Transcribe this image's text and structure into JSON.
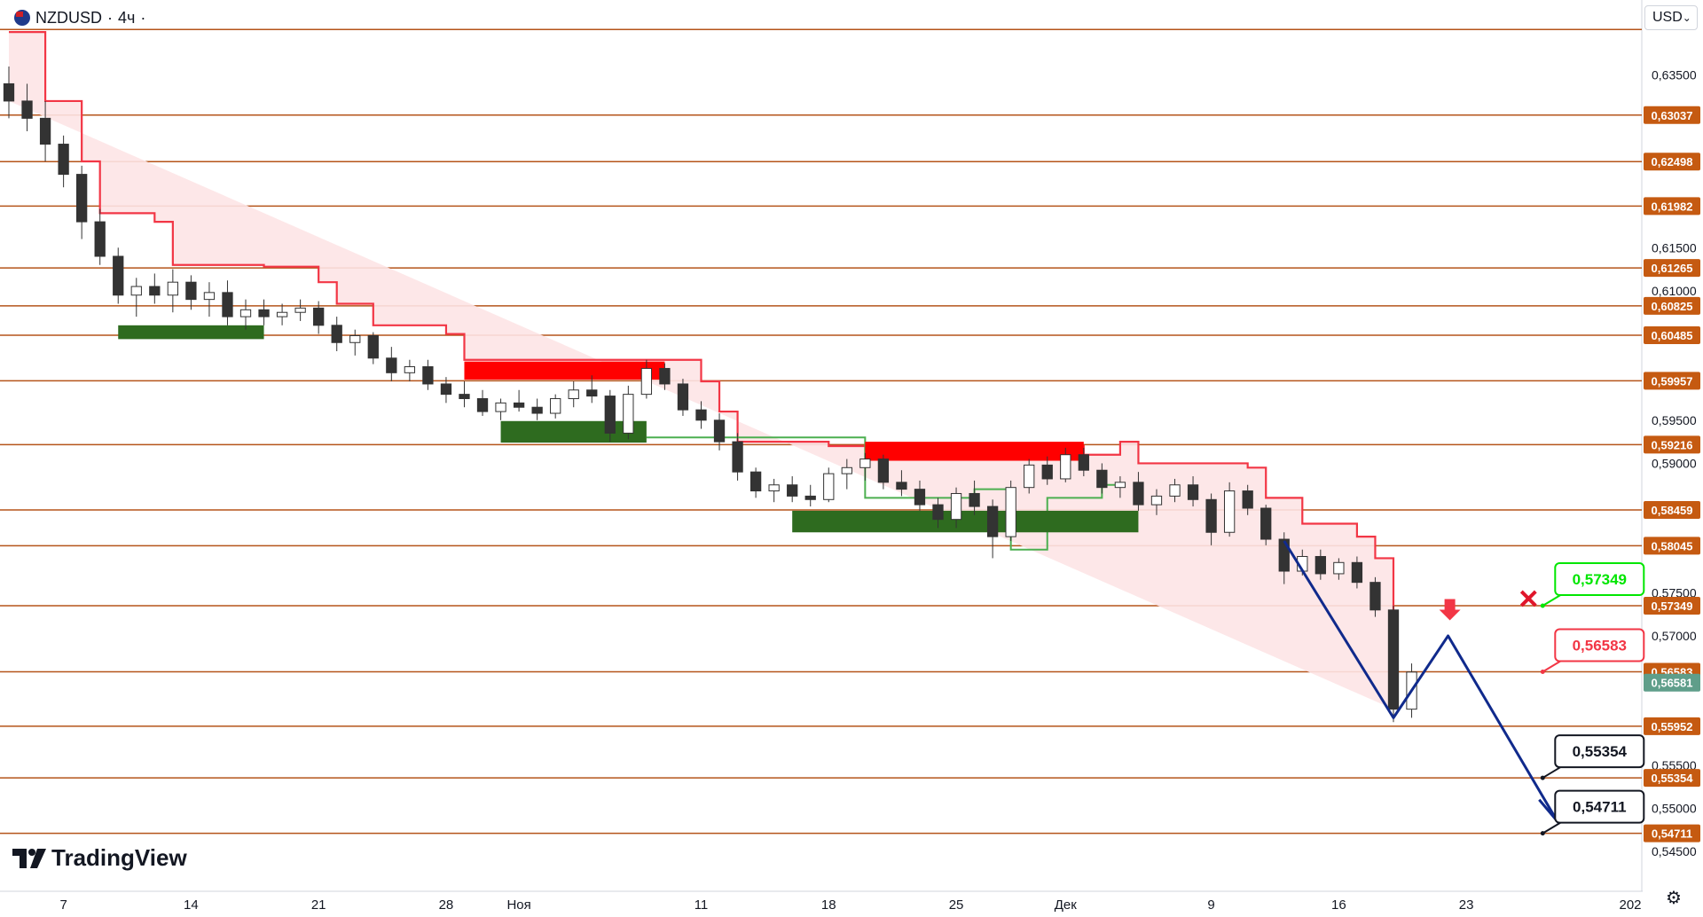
{
  "header": {
    "symbol": "NZDUSD",
    "interval": "4ч",
    "currency": "USD",
    "currency_chevron": "⌄"
  },
  "logo": {
    "text": "TradingView"
  },
  "icons": {
    "flag": "nz-flag-icon",
    "settings": "settings-icon",
    "cross": "cross-icon",
    "arrow": "arrow-down-icon"
  },
  "colors": {
    "level_line": "#b5541a",
    "level_label_bg": "#c55a11",
    "supertrend": "#f23645",
    "supertrend_fill": "#fde4e6",
    "green_zone": "#2e6b1f",
    "red_zone": "#ff0000",
    "forecast": "#102a8c",
    "current_price_bg": "#5f9e8a",
    "up_candle": "#089981",
    "down_candle": "#f23645",
    "candle_body": "#333333"
  },
  "chart_data": {
    "type": "candlestick",
    "title": "",
    "ylim": [
      0.5445,
      0.6396
    ],
    "y_ticks": [
      "0,63500",
      "0,61500",
      "0,61000",
      "0,59500",
      "0,59000",
      "0,57500",
      "0,57000",
      "0,55500",
      "0,55000",
      "0,54500"
    ],
    "x_range_start": "2024-10-04",
    "x_range_end": "2025-01-01",
    "x_ticks": [
      {
        "date": "2024-10-07",
        "label": "7"
      },
      {
        "date": "2024-10-14",
        "label": "14"
      },
      {
        "date": "2024-10-21",
        "label": "21"
      },
      {
        "date": "2024-10-28",
        "label": "28"
      },
      {
        "date": "2024-11-01",
        "label": "Ноя"
      },
      {
        "date": "2024-11-11",
        "label": "11"
      },
      {
        "date": "2024-11-18",
        "label": "18"
      },
      {
        "date": "2024-11-25",
        "label": "25"
      },
      {
        "date": "2024-12-01",
        "label": "Дек"
      },
      {
        "date": "2024-12-09",
        "label": "9"
      },
      {
        "date": "2024-12-16",
        "label": "16"
      },
      {
        "date": "2024-12-23",
        "label": "23"
      },
      {
        "date": "2025-01-01",
        "label": "202"
      }
    ],
    "levels": [
      {
        "value": 0.6403,
        "label": ""
      },
      {
        "value": 0.63037,
        "label": "0,63037"
      },
      {
        "value": 0.62498,
        "label": "0,62498"
      },
      {
        "value": 0.61982,
        "label": "0,61982"
      },
      {
        "value": 0.61265,
        "label": "0,61265"
      },
      {
        "value": 0.60825,
        "label": "0,60825"
      },
      {
        "value": 0.60485,
        "label": "0,60485"
      },
      {
        "value": 0.59957,
        "label": "0,59957"
      },
      {
        "value": 0.59216,
        "label": "0,59216"
      },
      {
        "value": 0.58459,
        "label": "0,58459"
      },
      {
        "value": 0.58045,
        "label": "0,58045"
      },
      {
        "value": 0.57349,
        "label": "0,57349"
      },
      {
        "value": 0.56583,
        "label": "0,56583"
      },
      {
        "value": 0.55952,
        "label": "0,55952"
      },
      {
        "value": 0.55354,
        "label": "0,55354"
      },
      {
        "value": 0.54711,
        "label": "0,54711"
      }
    ],
    "current_price": {
      "value": 0.56581,
      "label": "0,56581"
    },
    "callouts": [
      {
        "label": "0,57349",
        "value": 0.57349,
        "date": "2024-12-27",
        "style": "green"
      },
      {
        "label": "0,56583",
        "value": 0.56583,
        "date": "2024-12-27",
        "style": "red"
      },
      {
        "label": "0,55354",
        "value": 0.55354,
        "date": "2024-12-27",
        "style": "dark"
      },
      {
        "label": "0,54711",
        "value": 0.54711,
        "date": "2024-12-27",
        "style": "dark"
      }
    ],
    "forecast_path": [
      {
        "date": "2024-12-13",
        "value": 0.581
      },
      {
        "date": "2024-12-19",
        "value": 0.5605
      },
      {
        "date": "2024-12-22",
        "value": 0.57
      },
      {
        "date": "2024-12-28",
        "value": 0.5485
      },
      {
        "date": "2024-12-27",
        "value": 0.548
      }
    ],
    "arrowhead": [
      {
        "date": "2024-12-27",
        "value": 0.551
      },
      {
        "date": "2024-12-28",
        "value": 0.5485
      },
      {
        "date": "2024-12-28",
        "value": 0.552
      }
    ],
    "cross_marker": {
      "date": "2024-12-27",
      "value": 0.5735
    },
    "down_arrow_marker": {
      "date": "2024-12-22",
      "value": 0.572
    },
    "zones": [
      {
        "type": "support",
        "start": "2024-10-10",
        "end": "2024-10-18",
        "top": 0.606,
        "bottom": 0.6044
      },
      {
        "type": "resistance",
        "start": "2024-10-29",
        "end": "2024-11-09",
        "top": 0.6018,
        "bottom": 0.5997
      },
      {
        "type": "support",
        "start": "2024-10-31",
        "end": "2024-11-08",
        "top": 0.5949,
        "bottom": 0.5924
      },
      {
        "type": "resistance",
        "start": "2024-11-20",
        "end": "2024-12-02",
        "top": 0.5925,
        "bottom": 0.5903
      },
      {
        "type": "support",
        "start": "2024-11-16",
        "end": "2024-12-05",
        "top": 0.5845,
        "bottom": 0.582
      }
    ],
    "supertrend_upper": [
      {
        "date": "2024-10-04",
        "value": 0.64
      },
      {
        "date": "2024-10-06",
        "value": 0.632
      },
      {
        "date": "2024-10-08",
        "value": 0.625
      },
      {
        "date": "2024-10-09",
        "value": 0.619
      },
      {
        "date": "2024-10-12",
        "value": 0.618
      },
      {
        "date": "2024-10-13",
        "value": 0.613
      },
      {
        "date": "2024-10-18",
        "value": 0.6128
      },
      {
        "date": "2024-10-21",
        "value": 0.611
      },
      {
        "date": "2024-10-22",
        "value": 0.6085
      },
      {
        "date": "2024-10-24",
        "value": 0.606
      },
      {
        "date": "2024-10-28",
        "value": 0.605
      },
      {
        "date": "2024-10-29",
        "value": 0.602
      },
      {
        "date": "2024-11-11",
        "value": 0.5995
      },
      {
        "date": "2024-11-12",
        "value": 0.596
      },
      {
        "date": "2024-11-13",
        "value": 0.5925
      },
      {
        "date": "2024-11-18",
        "value": 0.592
      },
      {
        "date": "2024-12-02",
        "value": 0.591
      },
      {
        "date": "2024-12-04",
        "value": 0.5925
      },
      {
        "date": "2024-12-05",
        "value": 0.59
      },
      {
        "date": "2024-12-11",
        "value": 0.5895
      },
      {
        "date": "2024-12-12",
        "value": 0.586
      },
      {
        "date": "2024-12-14",
        "value": 0.583
      },
      {
        "date": "2024-12-17",
        "value": 0.5815
      },
      {
        "date": "2024-12-18",
        "value": 0.579
      },
      {
        "date": "2024-12-19",
        "value": 0.57
      }
    ],
    "supertrend_lower": [
      {
        "date": "2024-11-08",
        "value": 0.593
      },
      {
        "date": "2024-11-11",
        "value": 0.593
      },
      {
        "date": "2024-11-20",
        "value": 0.586
      },
      {
        "date": "2024-11-26",
        "value": 0.587
      },
      {
        "date": "2024-11-28",
        "value": 0.58
      },
      {
        "date": "2024-11-30",
        "value": 0.586
      },
      {
        "date": "2024-12-03",
        "value": 0.5875
      },
      {
        "date": "2024-12-04",
        "value": 0.5875
      }
    ],
    "candles": [
      {
        "date": "2024-10-04",
        "open": 0.634,
        "high": 0.636,
        "low": 0.63,
        "close": 0.632
      },
      {
        "date": "2024-10-05",
        "open": 0.632,
        "high": 0.634,
        "low": 0.6285,
        "close": 0.63
      },
      {
        "date": "2024-10-06",
        "open": 0.63,
        "high": 0.632,
        "low": 0.625,
        "close": 0.627
      },
      {
        "date": "2024-10-07",
        "open": 0.627,
        "high": 0.628,
        "low": 0.622,
        "close": 0.6235
      },
      {
        "date": "2024-10-08",
        "open": 0.6235,
        "high": 0.6245,
        "low": 0.616,
        "close": 0.618
      },
      {
        "date": "2024-10-09",
        "open": 0.618,
        "high": 0.6195,
        "low": 0.613,
        "close": 0.614
      },
      {
        "date": "2024-10-10",
        "open": 0.614,
        "high": 0.615,
        "low": 0.6085,
        "close": 0.6095
      },
      {
        "date": "2024-10-11",
        "open": 0.6095,
        "high": 0.6115,
        "low": 0.607,
        "close": 0.6105
      },
      {
        "date": "2024-10-12",
        "open": 0.6105,
        "high": 0.612,
        "low": 0.6085,
        "close": 0.6095
      },
      {
        "date": "2024-10-13",
        "open": 0.6095,
        "high": 0.6125,
        "low": 0.6075,
        "close": 0.611
      },
      {
        "date": "2024-10-14",
        "open": 0.611,
        "high": 0.6118,
        "low": 0.6078,
        "close": 0.609
      },
      {
        "date": "2024-10-15",
        "open": 0.609,
        "high": 0.611,
        "low": 0.607,
        "close": 0.6098
      },
      {
        "date": "2024-10-16",
        "open": 0.6098,
        "high": 0.6112,
        "low": 0.606,
        "close": 0.607
      },
      {
        "date": "2024-10-17",
        "open": 0.607,
        "high": 0.609,
        "low": 0.6055,
        "close": 0.6078
      },
      {
        "date": "2024-10-18",
        "open": 0.6078,
        "high": 0.609,
        "low": 0.606,
        "close": 0.607
      },
      {
        "date": "2024-10-19",
        "open": 0.607,
        "high": 0.6085,
        "low": 0.606,
        "close": 0.6075
      },
      {
        "date": "2024-10-20",
        "open": 0.6075,
        "high": 0.609,
        "low": 0.6065,
        "close": 0.608
      },
      {
        "date": "2024-10-21",
        "open": 0.608,
        "high": 0.6088,
        "low": 0.605,
        "close": 0.606
      },
      {
        "date": "2024-10-22",
        "open": 0.606,
        "high": 0.607,
        "low": 0.603,
        "close": 0.604
      },
      {
        "date": "2024-10-23",
        "open": 0.604,
        "high": 0.6055,
        "low": 0.6025,
        "close": 0.6048
      },
      {
        "date": "2024-10-24",
        "open": 0.6048,
        "high": 0.6052,
        "low": 0.6015,
        "close": 0.6022
      },
      {
        "date": "2024-10-25",
        "open": 0.6022,
        "high": 0.6035,
        "low": 0.5995,
        "close": 0.6005
      },
      {
        "date": "2024-10-26",
        "open": 0.6005,
        "high": 0.602,
        "low": 0.5995,
        "close": 0.6012
      },
      {
        "date": "2024-10-27",
        "open": 0.6012,
        "high": 0.602,
        "low": 0.5985,
        "close": 0.5992
      },
      {
        "date": "2024-10-28",
        "open": 0.5992,
        "high": 0.6,
        "low": 0.597,
        "close": 0.598
      },
      {
        "date": "2024-10-29",
        "open": 0.598,
        "high": 0.5995,
        "low": 0.5965,
        "close": 0.5975
      },
      {
        "date": "2024-10-30",
        "open": 0.5975,
        "high": 0.5985,
        "low": 0.5955,
        "close": 0.596
      },
      {
        "date": "2024-10-31",
        "open": 0.596,
        "high": 0.5975,
        "low": 0.595,
        "close": 0.597
      },
      {
        "date": "2024-11-01",
        "open": 0.597,
        "high": 0.5985,
        "low": 0.596,
        "close": 0.5965
      },
      {
        "date": "2024-11-02",
        "open": 0.5965,
        "high": 0.5975,
        "low": 0.595,
        "close": 0.5958
      },
      {
        "date": "2024-11-03",
        "open": 0.5958,
        "high": 0.598,
        "low": 0.5952,
        "close": 0.5975
      },
      {
        "date": "2024-11-04",
        "open": 0.5975,
        "high": 0.5995,
        "low": 0.5965,
        "close": 0.5985
      },
      {
        "date": "2024-11-05",
        "open": 0.5985,
        "high": 0.6002,
        "low": 0.597,
        "close": 0.5978
      },
      {
        "date": "2024-11-06",
        "open": 0.5978,
        "high": 0.5985,
        "low": 0.5925,
        "close": 0.5935
      },
      {
        "date": "2024-11-07",
        "open": 0.5935,
        "high": 0.599,
        "low": 0.5928,
        "close": 0.598
      },
      {
        "date": "2024-11-08",
        "open": 0.598,
        "high": 0.602,
        "low": 0.5975,
        "close": 0.601
      },
      {
        "date": "2024-11-09",
        "open": 0.601,
        "high": 0.6016,
        "low": 0.5985,
        "close": 0.5992
      },
      {
        "date": "2024-11-10",
        "open": 0.5992,
        "high": 0.5998,
        "low": 0.5955,
        "close": 0.5962
      },
      {
        "date": "2024-11-11",
        "open": 0.5962,
        "high": 0.5972,
        "low": 0.594,
        "close": 0.595
      },
      {
        "date": "2024-11-12",
        "open": 0.595,
        "high": 0.5958,
        "low": 0.5915,
        "close": 0.5925
      },
      {
        "date": "2024-11-13",
        "open": 0.5925,
        "high": 0.5935,
        "low": 0.588,
        "close": 0.589
      },
      {
        "date": "2024-11-14",
        "open": 0.589,
        "high": 0.5895,
        "low": 0.586,
        "close": 0.5868
      },
      {
        "date": "2024-11-15",
        "open": 0.5868,
        "high": 0.5882,
        "low": 0.5855,
        "close": 0.5875
      },
      {
        "date": "2024-11-16",
        "open": 0.5875,
        "high": 0.5885,
        "low": 0.5855,
        "close": 0.5862
      },
      {
        "date": "2024-11-17",
        "open": 0.5862,
        "high": 0.5875,
        "low": 0.585,
        "close": 0.5858
      },
      {
        "date": "2024-11-18",
        "open": 0.5858,
        "high": 0.5895,
        "low": 0.5855,
        "close": 0.5888
      },
      {
        "date": "2024-11-19",
        "open": 0.5888,
        "high": 0.5905,
        "low": 0.587,
        "close": 0.5895
      },
      {
        "date": "2024-11-20",
        "open": 0.5895,
        "high": 0.5912,
        "low": 0.588,
        "close": 0.5905
      },
      {
        "date": "2024-11-21",
        "open": 0.5905,
        "high": 0.591,
        "low": 0.587,
        "close": 0.5878
      },
      {
        "date": "2024-11-22",
        "open": 0.5878,
        "high": 0.5892,
        "low": 0.5862,
        "close": 0.587
      },
      {
        "date": "2024-11-23",
        "open": 0.587,
        "high": 0.588,
        "low": 0.5845,
        "close": 0.5852
      },
      {
        "date": "2024-11-24",
        "open": 0.5852,
        "high": 0.586,
        "low": 0.5825,
        "close": 0.5835
      },
      {
        "date": "2024-11-25",
        "open": 0.5835,
        "high": 0.5872,
        "low": 0.5825,
        "close": 0.5865
      },
      {
        "date": "2024-11-26",
        "open": 0.5865,
        "high": 0.588,
        "low": 0.584,
        "close": 0.585
      },
      {
        "date": "2024-11-27",
        "open": 0.585,
        "high": 0.5858,
        "low": 0.579,
        "close": 0.5815
      },
      {
        "date": "2024-11-28",
        "open": 0.5815,
        "high": 0.588,
        "low": 0.581,
        "close": 0.5872
      },
      {
        "date": "2024-11-29",
        "open": 0.5872,
        "high": 0.5905,
        "low": 0.5865,
        "close": 0.5898
      },
      {
        "date": "2024-11-30",
        "open": 0.5898,
        "high": 0.5908,
        "low": 0.5875,
        "close": 0.5882
      },
      {
        "date": "2024-12-01",
        "open": 0.5882,
        "high": 0.5918,
        "low": 0.5878,
        "close": 0.591
      },
      {
        "date": "2024-12-02",
        "open": 0.591,
        "high": 0.5918,
        "low": 0.5885,
        "close": 0.5892
      },
      {
        "date": "2024-12-03",
        "open": 0.5892,
        "high": 0.59,
        "low": 0.5865,
        "close": 0.5872
      },
      {
        "date": "2024-12-04",
        "open": 0.5872,
        "high": 0.5885,
        "low": 0.586,
        "close": 0.5878
      },
      {
        "date": "2024-12-05",
        "open": 0.5878,
        "high": 0.589,
        "low": 0.5845,
        "close": 0.5852
      },
      {
        "date": "2024-12-06",
        "open": 0.5852,
        "high": 0.587,
        "low": 0.584,
        "close": 0.5862
      },
      {
        "date": "2024-12-07",
        "open": 0.5862,
        "high": 0.5882,
        "low": 0.5855,
        "close": 0.5875
      },
      {
        "date": "2024-12-08",
        "open": 0.5875,
        "high": 0.5885,
        "low": 0.585,
        "close": 0.5858
      },
      {
        "date": "2024-12-09",
        "open": 0.5858,
        "high": 0.5865,
        "low": 0.5805,
        "close": 0.582
      },
      {
        "date": "2024-12-10",
        "open": 0.582,
        "high": 0.5878,
        "low": 0.5815,
        "close": 0.5868
      },
      {
        "date": "2024-12-11",
        "open": 0.5868,
        "high": 0.5875,
        "low": 0.584,
        "close": 0.5848
      },
      {
        "date": "2024-12-12",
        "open": 0.5848,
        "high": 0.5852,
        "low": 0.5805,
        "close": 0.5812
      },
      {
        "date": "2024-12-13",
        "open": 0.5812,
        "high": 0.582,
        "low": 0.576,
        "close": 0.5775
      },
      {
        "date": "2024-12-14",
        "open": 0.5775,
        "high": 0.58,
        "low": 0.577,
        "close": 0.5792
      },
      {
        "date": "2024-12-15",
        "open": 0.5792,
        "high": 0.58,
        "low": 0.5765,
        "close": 0.5772
      },
      {
        "date": "2024-12-16",
        "open": 0.5772,
        "high": 0.579,
        "low": 0.5765,
        "close": 0.5785
      },
      {
        "date": "2024-12-17",
        "open": 0.5785,
        "high": 0.5792,
        "low": 0.5755,
        "close": 0.5762
      },
      {
        "date": "2024-12-18",
        "open": 0.5762,
        "high": 0.5768,
        "low": 0.5722,
        "close": 0.573
      },
      {
        "date": "2024-12-19",
        "open": 0.573,
        "high": 0.5735,
        "low": 0.56,
        "close": 0.5615
      },
      {
        "date": "2024-12-20",
        "open": 0.5615,
        "high": 0.5668,
        "low": 0.5605,
        "close": 0.5658
      }
    ]
  }
}
